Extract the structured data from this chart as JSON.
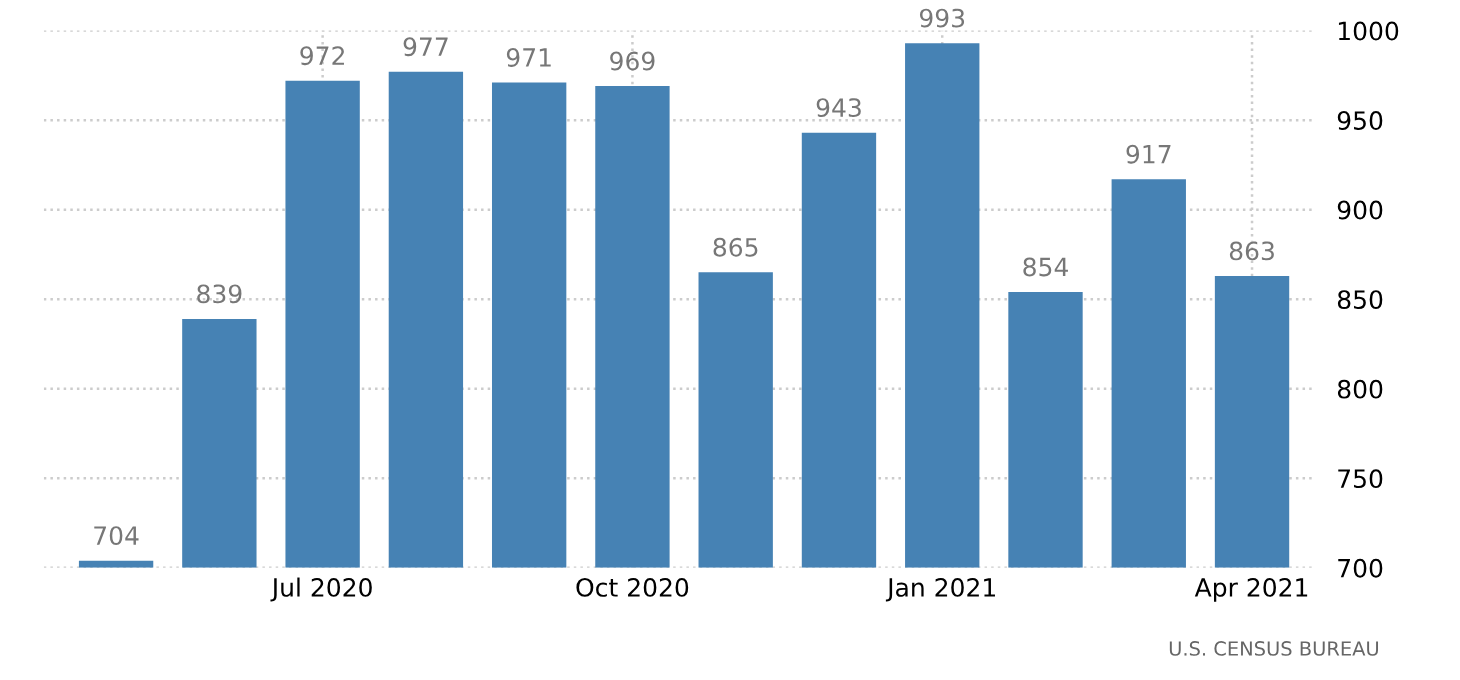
{
  "chart_data": {
    "type": "bar",
    "categories": [
      null,
      null,
      "Jul 2020",
      null,
      null,
      "Oct 2020",
      null,
      null,
      "Jan 2021",
      null,
      null,
      "Apr 2021"
    ],
    "values": [
      704,
      839,
      972,
      977,
      971,
      969,
      865,
      943,
      993,
      854,
      917,
      863
    ],
    "color": "#4682b4",
    "ylim": [
      700,
      1000
    ],
    "yticks": [
      700,
      750,
      800,
      850,
      900,
      950,
      1000
    ],
    "grid": true,
    "data_labels": true,
    "annotations": [
      "U.S. CENSUS BUREAU"
    ]
  }
}
